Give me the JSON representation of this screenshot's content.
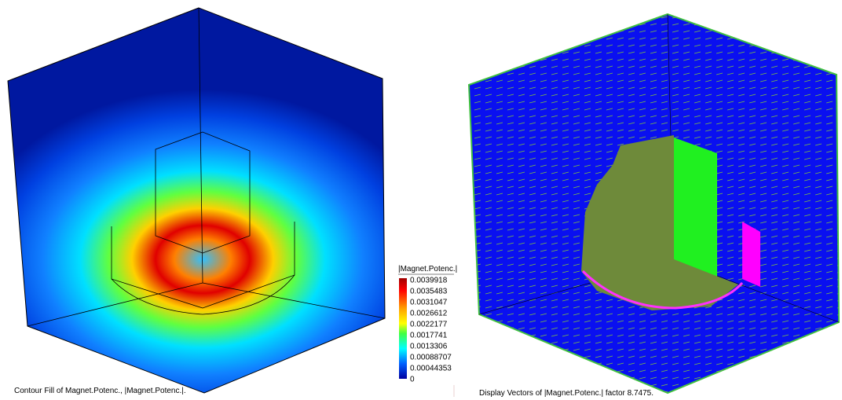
{
  "left": {
    "caption": "Contour Fill of Magnet.Potenc., |Magnet.Potenc.|.",
    "legend": {
      "title": "|Magnet.Potenc.|",
      "labels": [
        "0.0039918",
        "0.0035483",
        "0.0031047",
        "0.0026612",
        "0.0022177",
        "0.0017741",
        "0.0013306",
        "0.00088707",
        "0.00044353",
        "0"
      ]
    }
  },
  "right": {
    "caption": "Display Vectors of |Magnet.Potenc.| factor 8.7475."
  }
}
